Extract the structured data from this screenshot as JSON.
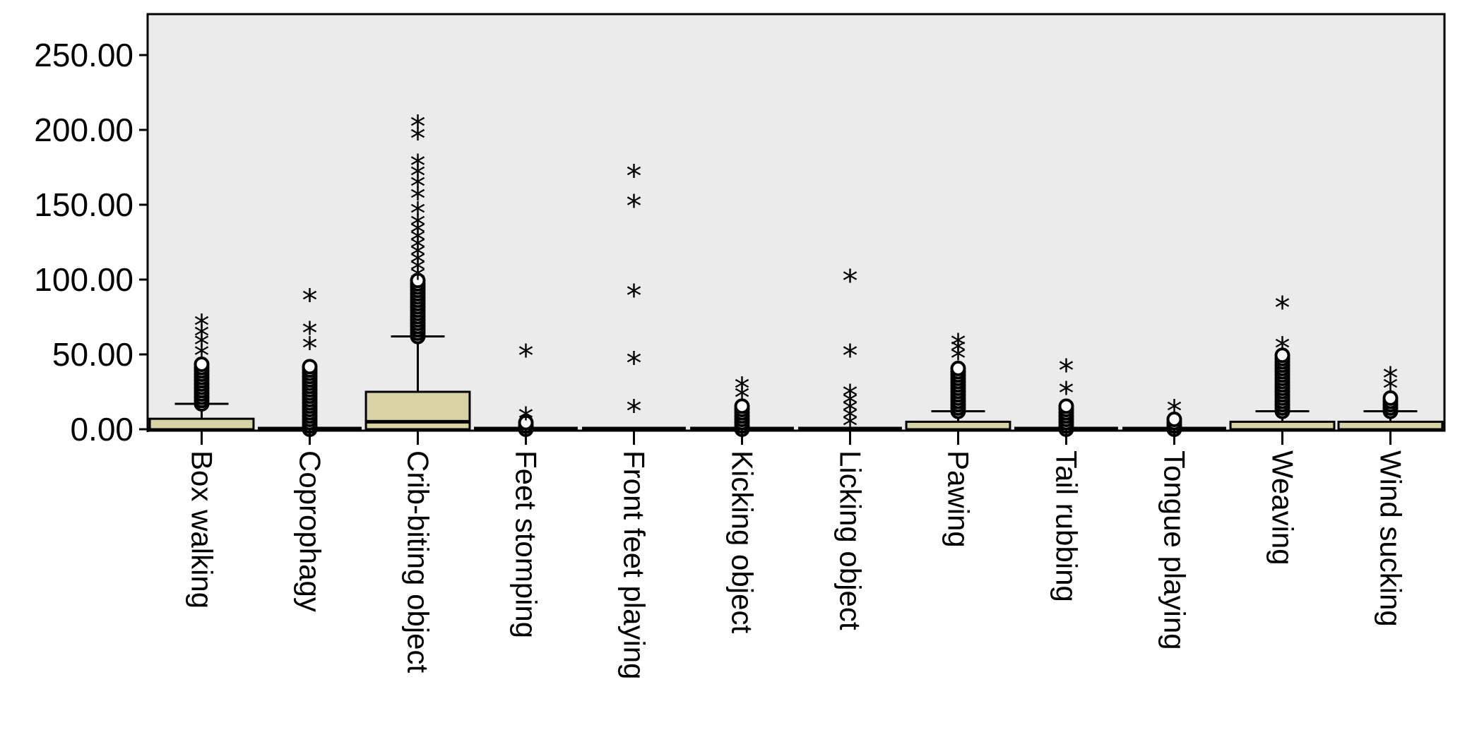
{
  "chart_data": {
    "type": "box",
    "title": "",
    "xlabel": "",
    "ylabel": "",
    "ylim": [
      0,
      275
    ],
    "yticks": [
      0,
      50,
      100,
      150,
      200,
      250
    ],
    "ytick_labels": [
      "0.00",
      "50.00",
      "100.00",
      "150.00",
      "200.00",
      "250.00"
    ],
    "grid": false,
    "plot_background": "#ebebeb",
    "box_fill": "#d8d3a4",
    "categories": [
      "Box walking",
      "Coprophagy",
      "Crib-biting object",
      "Feet stomping",
      "Front feet playing",
      "Kicking object",
      "Licking object",
      "Pawing",
      "Tail rubbing",
      "Tongue playing",
      "Weaving",
      "Wind sucking"
    ],
    "boxes": [
      {
        "category": "Box walking",
        "min": 0,
        "q1": 0,
        "median": 0,
        "q3": 7,
        "max": 17,
        "outliers_circle_range": [
          17,
          45
        ],
        "outliers_star": [
          50,
          57,
          63,
          70
        ]
      },
      {
        "category": "Coprophagy",
        "min": 0,
        "q1": 0,
        "median": 0,
        "q3": 0,
        "max": 0,
        "outliers_circle_range": [
          0,
          43
        ],
        "outliers_star": [
          55,
          65,
          87
        ]
      },
      {
        "category": "Crib-biting object",
        "min": 0,
        "q1": 0,
        "median": 5,
        "q3": 25,
        "max": 62,
        "outliers_circle_range": [
          62,
          100
        ],
        "outliers_star": [
          102,
          107,
          112,
          117,
          122,
          127,
          132,
          137,
          145,
          155,
          163,
          170,
          177,
          195,
          203
        ]
      },
      {
        "category": "Feet stomping",
        "min": 0,
        "q1": 0,
        "median": 0,
        "q3": 0,
        "max": 0,
        "outliers_circle_range": [
          0,
          5
        ],
        "outliers_star": [
          8,
          50
        ]
      },
      {
        "category": "Front feet playing",
        "min": 0,
        "q1": 0,
        "median": 0,
        "q3": 0,
        "max": 0,
        "outliers_circle_range": [],
        "outliers_star": [
          13,
          45,
          90,
          150,
          170
        ]
      },
      {
        "category": "Kicking object",
        "min": 0,
        "q1": 0,
        "median": 0,
        "q3": 0,
        "max": 0,
        "outliers_circle_range": [
          0,
          17
        ],
        "outliers_star": [
          22,
          28
        ]
      },
      {
        "category": "Licking object",
        "min": 0,
        "q1": 0,
        "median": 0,
        "q3": 0,
        "max": 0,
        "outliers_circle_range": [],
        "outliers_star": [
          3,
          8,
          13,
          18,
          23,
          50,
          100
        ]
      },
      {
        "category": "Pawing",
        "min": 0,
        "q1": 0,
        "median": 0,
        "q3": 5,
        "max": 12,
        "outliers_circle_range": [
          12,
          42
        ],
        "outliers_star": [
          48,
          53,
          57
        ]
      },
      {
        "category": "Tail rubbing",
        "min": 0,
        "q1": 0,
        "median": 0,
        "q3": 0,
        "max": 0,
        "outliers_circle_range": [
          0,
          17
        ],
        "outliers_star": [
          25,
          40
        ]
      },
      {
        "category": "Tongue playing",
        "min": 0,
        "q1": 0,
        "median": 0,
        "q3": 0,
        "max": 0,
        "outliers_circle_range": [
          0,
          8
        ],
        "outliers_star": [
          13
        ]
      },
      {
        "category": "Weaving",
        "min": 0,
        "q1": 0,
        "median": 0,
        "q3": 5,
        "max": 12,
        "outliers_circle_range": [
          12,
          50
        ],
        "outliers_star": [
          55,
          82
        ]
      },
      {
        "category": "Wind sucking",
        "min": 0,
        "q1": 0,
        "median": 0,
        "q3": 5,
        "max": 12,
        "outliers_circle_range": [
          12,
          22
        ],
        "outliers_star": [
          28,
          35
        ]
      }
    ]
  }
}
